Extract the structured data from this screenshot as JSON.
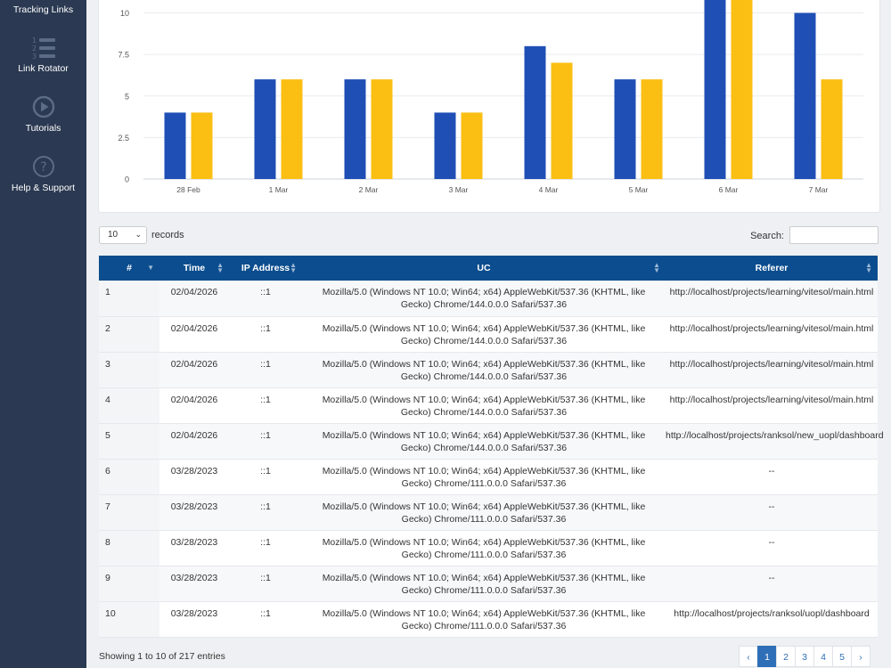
{
  "sidebar": {
    "items": [
      {
        "label": "Tracking Links",
        "icon": "link-icon"
      },
      {
        "label": "Link Rotator",
        "icon": "numbered-list-icon"
      },
      {
        "label": "Tutorials",
        "icon": "play-circle-icon"
      },
      {
        "label": "Help & Support",
        "icon": "question-circle-icon"
      }
    ]
  },
  "chart_data": {
    "type": "bar",
    "categories": [
      "28 Feb",
      "1 Mar",
      "2 Mar",
      "3 Mar",
      "4 Mar",
      "5 Mar",
      "6 Mar",
      "7 Mar"
    ],
    "series": [
      {
        "color": "#1f4fb5",
        "values": [
          4,
          6,
          6,
          4,
          8,
          6,
          11,
          10
        ]
      },
      {
        "color": "#fbbf14",
        "values": [
          4,
          6,
          6,
          4,
          7,
          6,
          11,
          6
        ]
      }
    ],
    "yticks": [
      "0",
      "2.5",
      "5",
      "7.5",
      "10"
    ],
    "ylim": [
      0,
      12
    ],
    "grid": true
  },
  "controls": {
    "page_length": "10",
    "records_label": "records",
    "search_label": "Search:",
    "search_value": ""
  },
  "table": {
    "headers": [
      "#",
      "Time",
      "IP Address",
      "UC",
      "Referer"
    ],
    "rows": [
      [
        "1",
        "02/04/2026",
        "::1",
        "Mozilla/5.0 (Windows NT 10.0; Win64; x64) AppleWebKit/537.36 (KHTML, like Gecko) Chrome/144.0.0.0 Safari/537.36",
        "http://localhost/projects/learning/vitesol/main.html"
      ],
      [
        "2",
        "02/04/2026",
        "::1",
        "Mozilla/5.0 (Windows NT 10.0; Win64; x64) AppleWebKit/537.36 (KHTML, like Gecko) Chrome/144.0.0.0 Safari/537.36",
        "http://localhost/projects/learning/vitesol/main.html"
      ],
      [
        "3",
        "02/04/2026",
        "::1",
        "Mozilla/5.0 (Windows NT 10.0; Win64; x64) AppleWebKit/537.36 (KHTML, like Gecko) Chrome/144.0.0.0 Safari/537.36",
        "http://localhost/projects/learning/vitesol/main.html"
      ],
      [
        "4",
        "02/04/2026",
        "::1",
        "Mozilla/5.0 (Windows NT 10.0; Win64; x64) AppleWebKit/537.36 (KHTML, like Gecko) Chrome/144.0.0.0 Safari/537.36",
        "http://localhost/projects/learning/vitesol/main.html"
      ],
      [
        "5",
        "02/04/2026",
        "::1",
        "Mozilla/5.0 (Windows NT 10.0; Win64; x64) AppleWebKit/537.36 (KHTML, like Gecko) Chrome/144.0.0.0 Safari/537.36",
        "http://localhost/projects/ranksol/new_uopl/dashboard"
      ],
      [
        "6",
        "03/28/2023",
        "::1",
        "Mozilla/5.0 (Windows NT 10.0; Win64; x64) AppleWebKit/537.36 (KHTML, like Gecko) Chrome/111.0.0.0 Safari/537.36",
        "--"
      ],
      [
        "7",
        "03/28/2023",
        "::1",
        "Mozilla/5.0 (Windows NT 10.0; Win64; x64) AppleWebKit/537.36 (KHTML, like Gecko) Chrome/111.0.0.0 Safari/537.36",
        "--"
      ],
      [
        "8",
        "03/28/2023",
        "::1",
        "Mozilla/5.0 (Windows NT 10.0; Win64; x64) AppleWebKit/537.36 (KHTML, like Gecko) Chrome/111.0.0.0 Safari/537.36",
        "--"
      ],
      [
        "9",
        "03/28/2023",
        "::1",
        "Mozilla/5.0 (Windows NT 10.0; Win64; x64) AppleWebKit/537.36 (KHTML, like Gecko) Chrome/111.0.0.0 Safari/537.36",
        "--"
      ],
      [
        "10",
        "03/28/2023",
        "::1",
        "Mozilla/5.0 (Windows NT 10.0; Win64; x64) AppleWebKit/537.36 (KHTML, like Gecko) Chrome/111.0.0.0 Safari/537.36",
        "http://localhost/projects/ranksol/uopl/dashboard"
      ]
    ]
  },
  "footer": {
    "info": "Showing 1 to 10 of 217 entries",
    "pages": [
      "1",
      "2",
      "3",
      "4",
      "5"
    ],
    "prev": "‹",
    "next": "›",
    "active_page": "1"
  },
  "colors": {
    "sidebar_bg": "#2b3952",
    "table_header_bg": "#0b4d8e",
    "accent": "#2e6fb7"
  }
}
